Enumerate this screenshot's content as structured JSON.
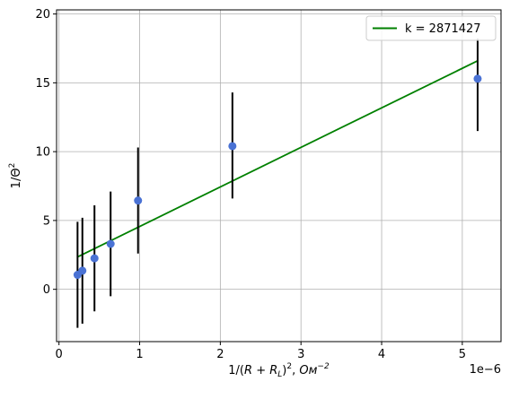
{
  "chart_data": {
    "type": "scatter",
    "title": "",
    "xlabel_prefix": "1/(",
    "xlabel_italic_1": "R",
    "xlabel_plus": " + ",
    "xlabel_italic_2": "R",
    "xlabel_sub": "L",
    "xlabel_close": ")",
    "xlabel_exp": "2",
    "xlabel_comma": ", ",
    "xlabel_unit": "Ом",
    "xlabel_unit_exp": "−2",
    "ylabel_prefix": "1/Θ",
    "ylabel_exp": "2",
    "x_offset_label": "1e−6",
    "xlim": [
      -0.03,
      5.48
    ],
    "ylim": [
      -3.8,
      20.3
    ],
    "x_ticks": [
      0,
      1,
      2,
      3,
      4,
      5
    ],
    "x_tick_labels": [
      "0",
      "1",
      "2",
      "3",
      "4",
      "5"
    ],
    "y_ticks": [
      0,
      5,
      10,
      15,
      20
    ],
    "y_tick_labels": [
      "0",
      "5",
      "10",
      "15",
      "20"
    ],
    "x_scale_note": "x values in units of 1e-6",
    "grid": true,
    "legend_position": "upper right",
    "series": [
      {
        "kind": "points",
        "x": [
          0.23,
          0.29,
          0.44,
          0.64,
          0.98,
          2.15,
          5.19
        ],
        "y": [
          1.05,
          1.35,
          2.25,
          3.3,
          6.45,
          10.4,
          15.3
        ],
        "yerr_low": [
          -2.8,
          -2.5,
          -1.6,
          -0.5,
          2.6,
          6.6,
          11.5
        ],
        "yerr_high": [
          4.9,
          5.2,
          6.1,
          7.1,
          10.3,
          14.3,
          18.2
        ],
        "color": "#4a72d4",
        "error_color": "#000000"
      },
      {
        "kind": "fit-line",
        "name": "k =  2871427",
        "x": [
          0.23,
          5.19
        ],
        "y": [
          2.35,
          16.6
        ],
        "color": "#008000"
      }
    ]
  }
}
